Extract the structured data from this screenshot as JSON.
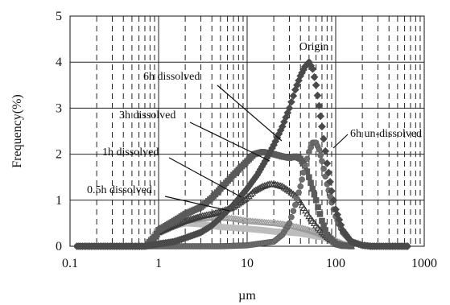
{
  "chart_data": {
    "type": "scatter",
    "title": "",
    "xlabel": "µm",
    "ylabel": "Frequency(%)",
    "x_scale": "log",
    "xlim": [
      0.1,
      1000
    ],
    "ylim": [
      0,
      5
    ],
    "x_ticks": [
      "0.1",
      "1",
      "10",
      "100",
      "1000"
    ],
    "y_ticks": [
      "0",
      "1",
      "2",
      "3",
      "4",
      "5"
    ],
    "grid": true,
    "legend": "none",
    "annotations": [
      {
        "text": "Origin",
        "series": "Origin"
      },
      {
        "text": "6h dissolved",
        "series": "6h dissolved"
      },
      {
        "text": "3h dissolved",
        "series": "3h dissolved"
      },
      {
        "text": "1h dissolved",
        "series": "1h dissolved"
      },
      {
        "text": "0.5h dissolved",
        "series": "0.5h dissolved"
      },
      {
        "text": "6h un-dissolved",
        "series": "6h un-dissolved"
      }
    ],
    "series": [
      {
        "name": "Origin",
        "color": "#4a4a4a",
        "marker": "diamond",
        "x": [
          0.12,
          0.2,
          0.4,
          0.7,
          0.8,
          1,
          1.5,
          2,
          3,
          4,
          5,
          7,
          10,
          13,
          16,
          20,
          25,
          30,
          35,
          40,
          45,
          50,
          55,
          60,
          65,
          70,
          80,
          90,
          100,
          120,
          150,
          200,
          250,
          300,
          400,
          500,
          650
        ],
        "y": [
          0,
          0,
          0,
          0,
          0.02,
          0.05,
          0.1,
          0.18,
          0.3,
          0.45,
          0.62,
          0.9,
          1.25,
          1.55,
          1.85,
          2.2,
          2.6,
          3.0,
          3.4,
          3.7,
          3.9,
          4.0,
          3.85,
          3.5,
          3.05,
          2.6,
          1.8,
          1.2,
          0.8,
          0.35,
          0.1,
          0.02,
          0,
          0,
          0,
          0,
          0
        ]
      },
      {
        "name": "6h un-dissolved",
        "color": "#6e6e6e",
        "marker": "circle",
        "x": [
          0.12,
          1,
          5,
          10,
          20,
          25,
          30,
          35,
          40,
          45,
          50,
          55,
          60,
          65,
          70,
          80,
          90,
          100,
          120,
          150,
          200,
          250
        ],
        "y": [
          0,
          0,
          0,
          0.02,
          0.1,
          0.25,
          0.5,
          0.9,
          1.3,
          1.75,
          2.05,
          2.25,
          2.25,
          2.1,
          1.85,
          1.35,
          0.95,
          0.65,
          0.3,
          0.1,
          0.02,
          0
        ]
      },
      {
        "name": "6h dissolved",
        "color": "#5a5a5a",
        "marker": "square",
        "x": [
          0.75,
          0.9,
          1,
          1.5,
          2,
          3,
          4,
          5,
          7,
          10,
          12,
          15,
          20,
          25,
          30,
          35,
          40,
          45,
          50,
          60,
          70,
          80,
          100,
          120,
          150
        ],
        "y": [
          0.05,
          0.2,
          0.35,
          0.55,
          0.7,
          0.85,
          1.05,
          1.25,
          1.55,
          1.85,
          2.0,
          2.05,
          2.0,
          1.95,
          1.92,
          1.95,
          1.9,
          1.75,
          1.5,
          1.0,
          0.55,
          0.25,
          0.05,
          0.01,
          0
        ]
      },
      {
        "name": "3h dissolved",
        "color": "#3a3a3a",
        "marker": "triangle-open",
        "x": [
          0.75,
          1,
          1.5,
          2,
          3,
          4,
          5,
          7,
          10,
          12,
          15,
          18,
          20,
          25,
          30,
          35,
          40,
          50,
          60,
          70,
          80,
          90,
          100,
          120,
          150
        ],
        "y": [
          0.05,
          0.3,
          0.45,
          0.55,
          0.65,
          0.7,
          0.75,
          0.85,
          1.05,
          1.2,
          1.3,
          1.35,
          1.35,
          1.3,
          1.2,
          1.1,
          0.95,
          0.65,
          0.45,
          0.3,
          0.2,
          0.12,
          0.06,
          0.02,
          0
        ]
      },
      {
        "name": "1h dissolved",
        "color": "#9a9a9a",
        "marker": "triangle-open",
        "x": [
          0.75,
          1,
          1.5,
          2,
          3,
          4,
          5,
          7,
          10,
          15,
          20,
          25,
          30,
          40,
          50,
          60,
          70,
          80,
          100,
          120,
          150
        ],
        "y": [
          0.05,
          0.3,
          0.45,
          0.55,
          0.6,
          0.62,
          0.62,
          0.6,
          0.55,
          0.52,
          0.5,
          0.48,
          0.45,
          0.4,
          0.35,
          0.3,
          0.25,
          0.2,
          0.12,
          0.05,
          0
        ]
      },
      {
        "name": "0.5h dissolved",
        "color": "#bcbcbc",
        "marker": "square",
        "x": [
          0.75,
          1,
          1.5,
          2,
          3,
          4,
          5,
          7,
          10,
          15,
          20,
          30,
          40,
          50,
          60,
          70,
          80,
          100,
          120,
          150
        ],
        "y": [
          0.05,
          0.35,
          0.45,
          0.5,
          0.48,
          0.45,
          0.42,
          0.4,
          0.38,
          0.35,
          0.32,
          0.3,
          0.28,
          0.25,
          0.22,
          0.2,
          0.17,
          0.1,
          0.04,
          0
        ]
      }
    ]
  }
}
